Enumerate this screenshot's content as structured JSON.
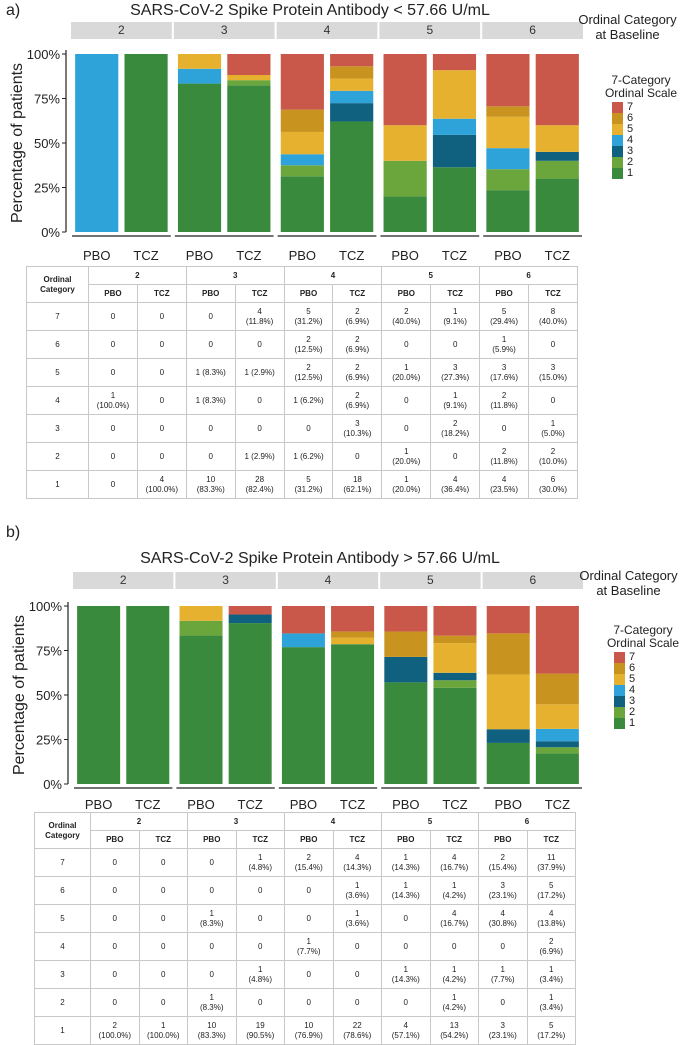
{
  "colors": {
    "cat7": "#c9574a",
    "cat6": "#c8941f",
    "cat5": "#e6b12e",
    "cat4": "#2ea3d9",
    "cat3": "#10607f",
    "cat2": "#6aa63c",
    "cat1": "#3a8a3e",
    "strip": "#d9d9d9",
    "axis": "#222222"
  },
  "panel_a": {
    "letter": "a)",
    "ordinal_label": [
      "Ordinal Category",
      "at Baseline"
    ],
    "legend": {
      "title": [
        "7-Category",
        "Ordinal Scale"
      ],
      "labels": [
        "7",
        "6",
        "5",
        "4",
        "3",
        "2",
        "1"
      ]
    },
    "table": {
      "header_ordinal": [
        "Ordinal",
        "Category"
      ],
      "groups": [
        "2",
        "3",
        "4",
        "5",
        "6"
      ],
      "arms": [
        "PBO",
        "TCZ"
      ],
      "rows": [
        {
          "cat": "7",
          "cells": [
            [
              "0"
            ],
            [
              "0"
            ],
            [
              "0"
            ],
            [
              "4",
              "(11.8%)"
            ],
            [
              "5",
              "(31.2%)"
            ],
            [
              "2",
              "(6.9%)"
            ],
            [
              "2",
              "(40.0%)"
            ],
            [
              "1",
              "(9.1%)"
            ],
            [
              "5",
              "(29.4%)"
            ],
            [
              "8",
              "(40.0%)"
            ]
          ]
        },
        {
          "cat": "6",
          "cells": [
            [
              "0"
            ],
            [
              "0"
            ],
            [
              "0"
            ],
            [
              "0"
            ],
            [
              "2",
              "(12.5%)"
            ],
            [
              "2",
              "(6.9%)"
            ],
            [
              "0"
            ],
            [
              "0"
            ],
            [
              "1",
              "(5.9%)"
            ],
            [
              "0"
            ]
          ]
        },
        {
          "cat": "5",
          "cells": [
            [
              "0"
            ],
            [
              "0"
            ],
            [
              "1 (8.3%)"
            ],
            [
              "1 (2.9%)"
            ],
            [
              "2",
              "(12.5%)"
            ],
            [
              "2",
              "(6.9%)"
            ],
            [
              "1",
              "(20.0%)"
            ],
            [
              "3",
              "(27.3%)"
            ],
            [
              "3",
              "(17.6%)"
            ],
            [
              "3",
              "(15.0%)"
            ]
          ]
        },
        {
          "cat": "4",
          "cells": [
            [
              "1",
              "(100.0%)"
            ],
            [
              "0"
            ],
            [
              "1 (8.3%)"
            ],
            [
              "0"
            ],
            [
              "1 (6.2%)"
            ],
            [
              "2",
              "(6.9%)"
            ],
            [
              "0"
            ],
            [
              "1",
              "(9.1%)"
            ],
            [
              "2",
              "(11.8%)"
            ],
            [
              "0"
            ]
          ]
        },
        {
          "cat": "3",
          "cells": [
            [
              "0"
            ],
            [
              "0"
            ],
            [
              "0"
            ],
            [
              "0"
            ],
            [
              "0"
            ],
            [
              "3",
              "(10.3%)"
            ],
            [
              "0"
            ],
            [
              "2",
              "(18.2%)"
            ],
            [
              "0"
            ],
            [
              "1",
              "(5.0%)"
            ]
          ]
        },
        {
          "cat": "2",
          "cells": [
            [
              "0"
            ],
            [
              "0"
            ],
            [
              "0"
            ],
            [
              "1 (2.9%)"
            ],
            [
              "1 (6.2%)"
            ],
            [
              "0"
            ],
            [
              "1",
              "(20.0%)"
            ],
            [
              "0"
            ],
            [
              "2",
              "(11.8%)"
            ],
            [
              "2",
              "(10.0%)"
            ]
          ]
        },
        {
          "cat": "1",
          "cells": [
            [
              "0"
            ],
            [
              "4",
              "(100.0%)"
            ],
            [
              "10",
              "(83.3%)"
            ],
            [
              "28",
              "(82.4%)"
            ],
            [
              "5",
              "(31.2%)"
            ],
            [
              "18",
              "(62.1%)"
            ],
            [
              "1",
              "(20.0%)"
            ],
            [
              "4",
              "(36.4%)"
            ],
            [
              "4",
              "(23.5%)"
            ],
            [
              "6",
              "(30.0%)"
            ]
          ]
        }
      ]
    }
  },
  "panel_b": {
    "letter": "b)",
    "ordinal_label": [
      "Ordinal Category",
      "at Baseline"
    ],
    "legend": {
      "title": [
        "7-Category",
        "Ordinal Scale"
      ],
      "labels": [
        "7",
        "6",
        "5",
        "4",
        "3",
        "2",
        "1"
      ]
    },
    "table": {
      "header_ordinal": [
        "Ordinal",
        "Category"
      ],
      "groups": [
        "2",
        "3",
        "4",
        "5",
        "6"
      ],
      "arms": [
        "PBO",
        "TCZ"
      ],
      "rows": [
        {
          "cat": "7",
          "cells": [
            [
              "0"
            ],
            [
              "0"
            ],
            [
              "0"
            ],
            [
              "1",
              "(4.8%)"
            ],
            [
              "2",
              "(15.4%)"
            ],
            [
              "4",
              "(14.3%)"
            ],
            [
              "1",
              "(14.3%)"
            ],
            [
              "4",
              "(16.7%)"
            ],
            [
              "2",
              "(15.4%)"
            ],
            [
              "11",
              "(37.9%)"
            ]
          ]
        },
        {
          "cat": "6",
          "cells": [
            [
              "0"
            ],
            [
              "0"
            ],
            [
              "0"
            ],
            [
              "0"
            ],
            [
              "0"
            ],
            [
              "1",
              "(3.6%)"
            ],
            [
              "1",
              "(14.3%)"
            ],
            [
              "1",
              "(4.2%)"
            ],
            [
              "3",
              "(23.1%)"
            ],
            [
              "5",
              "(17.2%)"
            ]
          ]
        },
        {
          "cat": "5",
          "cells": [
            [
              "0"
            ],
            [
              "0"
            ],
            [
              "1",
              "(8.3%)"
            ],
            [
              "0"
            ],
            [
              "0"
            ],
            [
              "1",
              "(3.6%)"
            ],
            [
              "0"
            ],
            [
              "4",
              "(16.7%)"
            ],
            [
              "4",
              "(30.8%)"
            ],
            [
              "4",
              "(13.8%)"
            ]
          ]
        },
        {
          "cat": "4",
          "cells": [
            [
              "0"
            ],
            [
              "0"
            ],
            [
              "0"
            ],
            [
              "0"
            ],
            [
              "1",
              "(7.7%)"
            ],
            [
              "0"
            ],
            [
              "0"
            ],
            [
              "0"
            ],
            [
              "0"
            ],
            [
              "2",
              "(6.9%)"
            ]
          ]
        },
        {
          "cat": "3",
          "cells": [
            [
              "0"
            ],
            [
              "0"
            ],
            [
              "0"
            ],
            [
              "1",
              "(4.8%)"
            ],
            [
              "0"
            ],
            [
              "0"
            ],
            [
              "1",
              "(14.3%)"
            ],
            [
              "1",
              "(4.2%)"
            ],
            [
              "1",
              "(7.7%)"
            ],
            [
              "1",
              "(3.4%)"
            ]
          ]
        },
        {
          "cat": "2",
          "cells": [
            [
              "0"
            ],
            [
              "0"
            ],
            [
              "1",
              "(8.3%)"
            ],
            [
              "0"
            ],
            [
              "0"
            ],
            [
              "0"
            ],
            [
              "0"
            ],
            [
              "1",
              "(4.2%)"
            ],
            [
              "0"
            ],
            [
              "1",
              "(3.4%)"
            ]
          ]
        },
        {
          "cat": "1",
          "cells": [
            [
              "2",
              "(100.0%)"
            ],
            [
              "1",
              "(100.0%)"
            ],
            [
              "10",
              "(83.3%)"
            ],
            [
              "19",
              "(90.5%)"
            ],
            [
              "10",
              "(76.9%)"
            ],
            [
              "22",
              "(78.6%)"
            ],
            [
              "4",
              "(57.1%)"
            ],
            [
              "13",
              "(54.2%)"
            ],
            [
              "3",
              "(23.1%)"
            ],
            [
              "5",
              "(17.2%)"
            ]
          ]
        }
      ]
    }
  },
  "chart_data": [
    {
      "type": "bar",
      "stacked": true,
      "title": "SARS-CoV-2 Spike Protein Antibody < 57.66 U/mL",
      "ylabel": "Percentage of patients",
      "xlabel": "",
      "ylim": [
        0,
        100
      ],
      "yticks": [
        "0%",
        "25%",
        "50%",
        "75%",
        "100%"
      ],
      "facets": [
        "2",
        "3",
        "4",
        "5",
        "6"
      ],
      "categories": [
        "PBO",
        "TCZ"
      ],
      "legend_position": "right",
      "bars": [
        {
          "facet": "2",
          "arm": "PBO",
          "segments": {
            "1": 0,
            "2": 0,
            "3": 0,
            "4": 100,
            "5": 0,
            "6": 0,
            "7": 0
          }
        },
        {
          "facet": "2",
          "arm": "TCZ",
          "segments": {
            "1": 100,
            "2": 0,
            "3": 0,
            "4": 0,
            "5": 0,
            "6": 0,
            "7": 0
          }
        },
        {
          "facet": "3",
          "arm": "PBO",
          "segments": {
            "1": 83.3,
            "2": 0,
            "3": 0,
            "4": 8.3,
            "5": 8.3,
            "6": 0,
            "7": 0
          }
        },
        {
          "facet": "3",
          "arm": "TCZ",
          "segments": {
            "1": 82.4,
            "2": 2.9,
            "3": 0,
            "4": 0,
            "5": 2.9,
            "6": 0,
            "7": 11.8
          }
        },
        {
          "facet": "4",
          "arm": "PBO",
          "segments": {
            "1": 31.2,
            "2": 6.2,
            "3": 0,
            "4": 6.2,
            "5": 12.5,
            "6": 12.5,
            "7": 31.2
          }
        },
        {
          "facet": "4",
          "arm": "TCZ",
          "segments": {
            "1": 62.1,
            "2": 0,
            "3": 10.3,
            "4": 6.9,
            "5": 6.9,
            "6": 6.9,
            "7": 6.9
          }
        },
        {
          "facet": "5",
          "arm": "PBO",
          "segments": {
            "1": 20,
            "2": 20,
            "3": 0,
            "4": 0,
            "5": 20,
            "6": 0,
            "7": 40
          }
        },
        {
          "facet": "5",
          "arm": "TCZ",
          "segments": {
            "1": 36.4,
            "2": 0,
            "3": 18.2,
            "4": 9.1,
            "5": 27.3,
            "6": 0,
            "7": 9.1
          }
        },
        {
          "facet": "6",
          "arm": "PBO",
          "segments": {
            "1": 23.5,
            "2": 11.8,
            "3": 0,
            "4": 11.8,
            "5": 17.6,
            "6": 5.9,
            "7": 29.4
          }
        },
        {
          "facet": "6",
          "arm": "TCZ",
          "segments": {
            "1": 30,
            "2": 10,
            "3": 5,
            "4": 0,
            "5": 15,
            "6": 0,
            "7": 40
          }
        }
      ]
    },
    {
      "type": "bar",
      "stacked": true,
      "title": "SARS-CoV-2 Spike Protein Antibody > 57.66 U/mL",
      "ylabel": "Percentage of patients",
      "xlabel": "",
      "ylim": [
        0,
        100
      ],
      "yticks": [
        "0%",
        "25%",
        "50%",
        "75%",
        "100%"
      ],
      "facets": [
        "2",
        "3",
        "4",
        "5",
        "6"
      ],
      "categories": [
        "PBO",
        "TCZ"
      ],
      "legend_position": "right",
      "bars": [
        {
          "facet": "2",
          "arm": "PBO",
          "segments": {
            "1": 100,
            "2": 0,
            "3": 0,
            "4": 0,
            "5": 0,
            "6": 0,
            "7": 0
          }
        },
        {
          "facet": "2",
          "arm": "TCZ",
          "segments": {
            "1": 100,
            "2": 0,
            "3": 0,
            "4": 0,
            "5": 0,
            "6": 0,
            "7": 0
          }
        },
        {
          "facet": "3",
          "arm": "PBO",
          "segments": {
            "1": 83.3,
            "2": 8.3,
            "3": 0,
            "4": 0,
            "5": 8.3,
            "6": 0,
            "7": 0
          }
        },
        {
          "facet": "3",
          "arm": "TCZ",
          "segments": {
            "1": 90.5,
            "2": 0,
            "3": 4.8,
            "4": 0,
            "5": 0,
            "6": 0,
            "7": 4.8
          }
        },
        {
          "facet": "4",
          "arm": "PBO",
          "segments": {
            "1": 76.9,
            "2": 0,
            "3": 0,
            "4": 7.7,
            "5": 0,
            "6": 0,
            "7": 15.4
          }
        },
        {
          "facet": "4",
          "arm": "TCZ",
          "segments": {
            "1": 78.6,
            "2": 0,
            "3": 0,
            "4": 0,
            "5": 3.6,
            "6": 3.6,
            "7": 14.3
          }
        },
        {
          "facet": "5",
          "arm": "PBO",
          "segments": {
            "1": 57.1,
            "2": 0,
            "3": 14.3,
            "4": 0,
            "5": 0,
            "6": 14.3,
            "7": 14.3
          }
        },
        {
          "facet": "5",
          "arm": "TCZ",
          "segments": {
            "1": 54.2,
            "2": 4.2,
            "3": 4.2,
            "4": 0,
            "5": 16.7,
            "6": 4.2,
            "7": 16.7
          }
        },
        {
          "facet": "6",
          "arm": "PBO",
          "segments": {
            "1": 23.1,
            "2": 0,
            "3": 7.7,
            "4": 0,
            "5": 30.8,
            "6": 23.1,
            "7": 15.4
          }
        },
        {
          "facet": "6",
          "arm": "TCZ",
          "segments": {
            "1": 17.2,
            "2": 3.4,
            "3": 3.4,
            "4": 6.9,
            "5": 13.8,
            "6": 17.2,
            "7": 37.9
          }
        }
      ]
    }
  ]
}
